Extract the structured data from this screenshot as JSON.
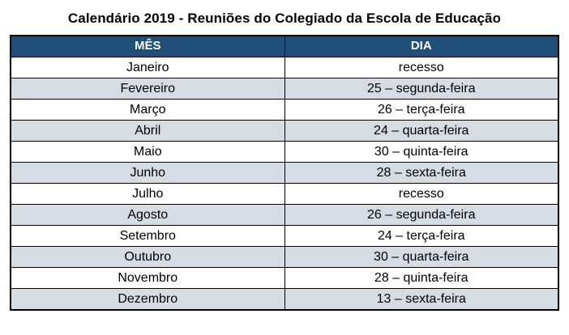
{
  "page": {
    "title": "Calendário 2019 - Reuniões do Colegiado da Escola de Educação"
  },
  "table": {
    "headers": {
      "month": "MÊS",
      "day": "DIA"
    },
    "rows": [
      {
        "month": "Janeiro",
        "day": "recesso"
      },
      {
        "month": "Fevereiro",
        "day": "25 – segunda-feira"
      },
      {
        "month": "Março",
        "day": "26 – terça-feira"
      },
      {
        "month": "Abril",
        "day": "24 – quarta-feira"
      },
      {
        "month": "Maio",
        "day": "30 – quinta-feira"
      },
      {
        "month": "Junho",
        "day": "28 – sexta-feira"
      },
      {
        "month": "Julho",
        "day": "recesso"
      },
      {
        "month": "Agosto",
        "day": "26 – segunda-feira"
      },
      {
        "month": "Setembro",
        "day": "24 – terça-feira"
      },
      {
        "month": "Outubro",
        "day": "30 – quarta-feira"
      },
      {
        "month": "Novembro",
        "day": "28 – quinta-feira"
      },
      {
        "month": "Dezembro",
        "day": "13 – sexta-feira"
      }
    ],
    "colors": {
      "header_bg": "#1F4E79",
      "header_text": "#FFFFFF",
      "alt_row_bg": "#D6DCE4",
      "border": "#000000"
    }
  }
}
